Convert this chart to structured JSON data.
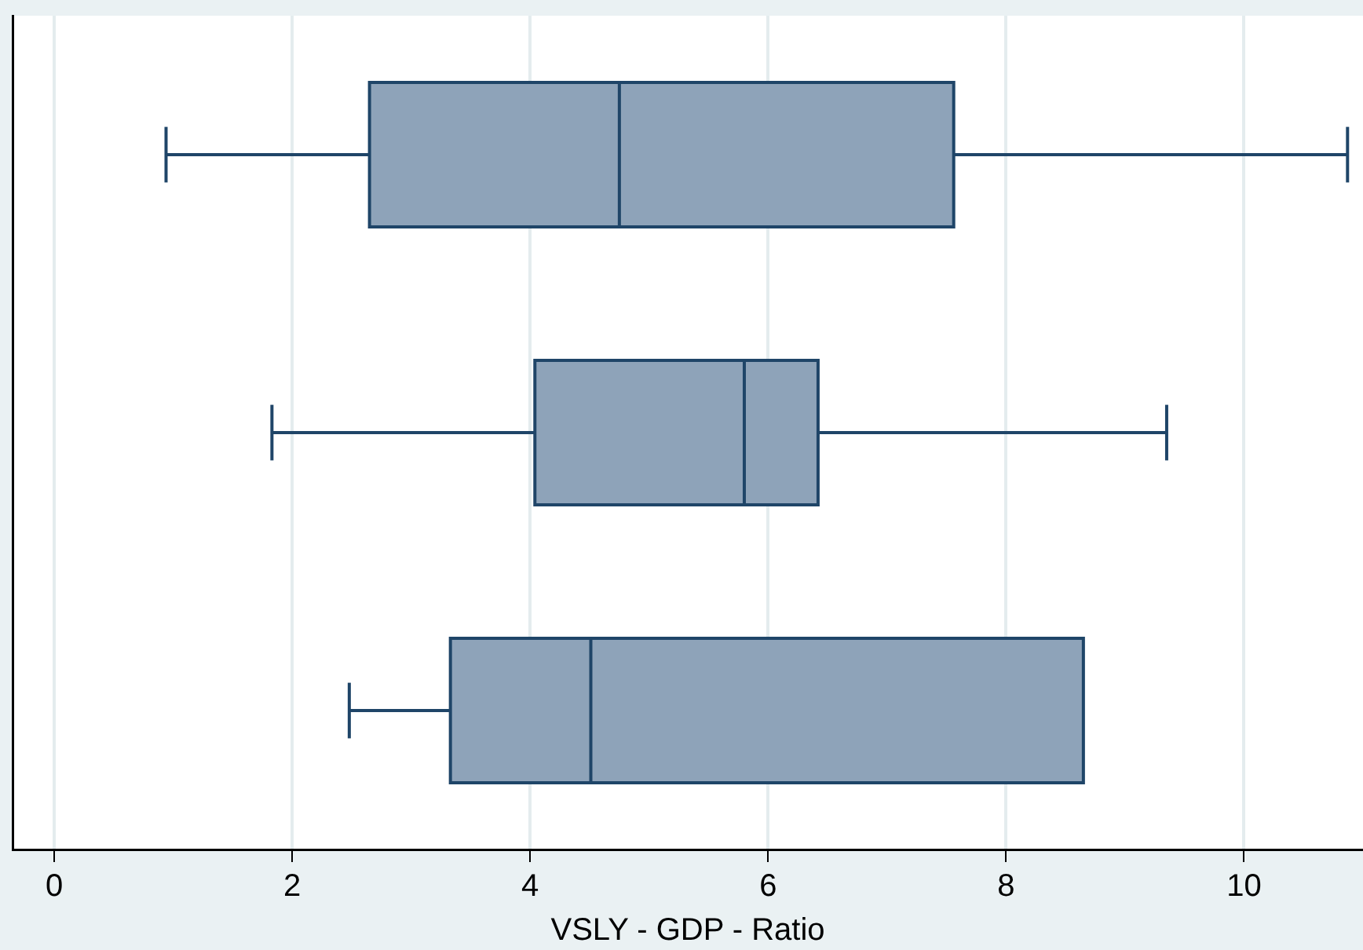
{
  "chart_data": {
    "type": "box",
    "orientation": "horizontal",
    "xlabel": "VSLY - GDP - Ratio",
    "categories": [
      null,
      null,
      null
    ],
    "color": "#8ea3b9",
    "boxes": [
      {
        "low": 0.94,
        "q1": 2.65,
        "median": 4.75,
        "q3": 7.56,
        "high": 10.87
      },
      {
        "low": 1.83,
        "q1": 4.04,
        "median": 5.8,
        "q3": 6.42,
        "high": 9.35
      },
      {
        "low": 2.48,
        "q1": 3.33,
        "median": 4.51,
        "q3": 8.65,
        "high": 8.65
      }
    ],
    "xlim": [
      -0.35,
      11
    ],
    "xticks": [
      0,
      2,
      4,
      6,
      8,
      10
    ],
    "grid": "x",
    "legend": false
  }
}
